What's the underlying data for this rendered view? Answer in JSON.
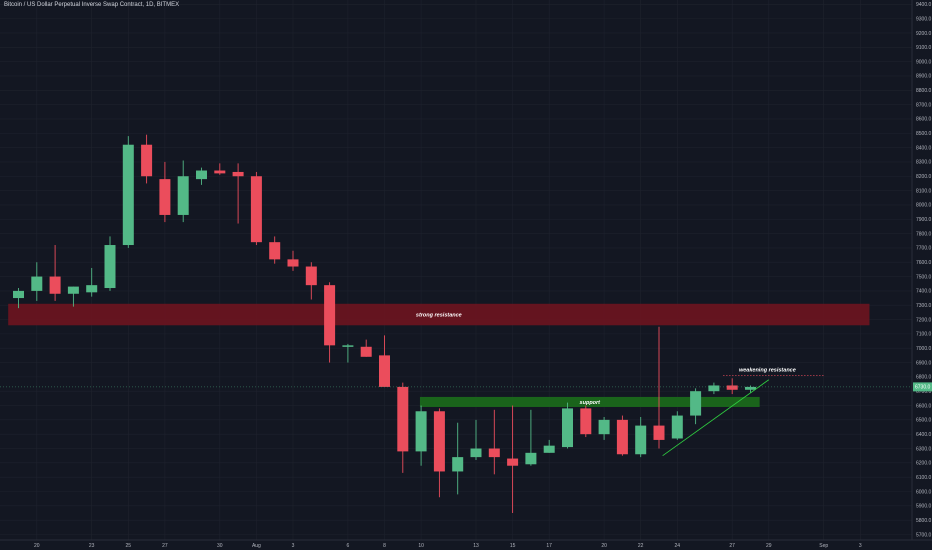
{
  "header": {
    "title": "Bitcoin / US Dollar Perpetual Inverse Swap Contract, 1D, BITMEX"
  },
  "colors": {
    "background": "#131722",
    "grid": "#1e222d",
    "up": "#53b987",
    "down": "#eb4d5c",
    "resistance_zone": "#6b1520",
    "support_zone": "#1b6b1b",
    "trendline": "#2ecc40",
    "price_tag": "#53b987"
  },
  "chart_data": {
    "type": "candlestick",
    "title": "Bitcoin / US Dollar Perpetual Inverse Swap Contract, 1D, BITMEX",
    "ylim": [
      5700,
      9400
    ],
    "grid": true,
    "y_ticks": [
      "5700.0",
      "5800.0",
      "5900.0",
      "6000.0",
      "6100.0",
      "6200.0",
      "6300.0",
      "6400.0",
      "6500.0",
      "6600.0",
      "6700.0",
      "6800.0",
      "6900.0",
      "7000.0",
      "7100.0",
      "7200.0",
      "7300.0",
      "7400.0",
      "7500.0",
      "7600.0",
      "7700.0",
      "7800.0",
      "7900.0",
      "8000.0",
      "8100.0",
      "8200.0",
      "8300.0",
      "8400.0",
      "8500.0",
      "8600.0",
      "8700.0",
      "8800.0",
      "8900.0",
      "9000.0",
      "9100.0",
      "9200.0",
      "9300.0",
      "9400.0"
    ],
    "x_labels": [
      {
        "i": 1,
        "text": "20"
      },
      {
        "i": 4,
        "text": "23"
      },
      {
        "i": 6,
        "text": "25"
      },
      {
        "i": 8,
        "text": "27"
      },
      {
        "i": 11,
        "text": "30"
      },
      {
        "i": 13,
        "text": "Aug"
      },
      {
        "i": 15,
        "text": "3"
      },
      {
        "i": 18,
        "text": "6"
      },
      {
        "i": 20,
        "text": "8"
      },
      {
        "i": 22,
        "text": "10"
      },
      {
        "i": 25,
        "text": "13"
      },
      {
        "i": 27,
        "text": "15"
      },
      {
        "i": 29,
        "text": "17"
      },
      {
        "i": 32,
        "text": "20"
      },
      {
        "i": 34,
        "text": "22"
      },
      {
        "i": 36,
        "text": "24"
      },
      {
        "i": 39,
        "text": "27"
      },
      {
        "i": 41,
        "text": "29"
      },
      {
        "i": 44,
        "text": "Sep"
      },
      {
        "i": 46,
        "text": "3"
      }
    ],
    "candles": [
      {
        "i": 0,
        "o": 7350,
        "h": 7420,
        "l": 7280,
        "c": 7400
      },
      {
        "i": 1,
        "o": 7400,
        "h": 7600,
        "l": 7330,
        "c": 7500
      },
      {
        "i": 2,
        "o": 7500,
        "h": 7720,
        "l": 7330,
        "c": 7380
      },
      {
        "i": 3,
        "o": 7380,
        "h": 7430,
        "l": 7290,
        "c": 7430
      },
      {
        "i": 4,
        "o": 7390,
        "h": 7560,
        "l": 7360,
        "c": 7440
      },
      {
        "i": 5,
        "o": 7420,
        "h": 7780,
        "l": 7400,
        "c": 7720
      },
      {
        "i": 6,
        "o": 7720,
        "h": 8480,
        "l": 7700,
        "c": 8420
      },
      {
        "i": 7,
        "o": 8420,
        "h": 8490,
        "l": 8150,
        "c": 8200
      },
      {
        "i": 8,
        "o": 8180,
        "h": 8300,
        "l": 7880,
        "c": 7930
      },
      {
        "i": 9,
        "o": 7930,
        "h": 8310,
        "l": 7880,
        "c": 8200
      },
      {
        "i": 10,
        "o": 8180,
        "h": 8260,
        "l": 8140,
        "c": 8240
      },
      {
        "i": 11,
        "o": 8240,
        "h": 8290,
        "l": 8210,
        "c": 8220
      },
      {
        "i": 12,
        "o": 8230,
        "h": 8290,
        "l": 7870,
        "c": 8200
      },
      {
        "i": 13,
        "o": 8200,
        "h": 8230,
        "l": 7720,
        "c": 7740
      },
      {
        "i": 14,
        "o": 7740,
        "h": 7780,
        "l": 7590,
        "c": 7620
      },
      {
        "i": 15,
        "o": 7620,
        "h": 7680,
        "l": 7540,
        "c": 7570
      },
      {
        "i": 16,
        "o": 7570,
        "h": 7600,
        "l": 7340,
        "c": 7440
      },
      {
        "i": 17,
        "o": 7440,
        "h": 7460,
        "l": 6900,
        "c": 7020
      },
      {
        "i": 18,
        "o": 7010,
        "h": 7030,
        "l": 6900,
        "c": 7020
      },
      {
        "i": 19,
        "o": 7010,
        "h": 7060,
        "l": 6940,
        "c": 6940
      },
      {
        "i": 20,
        "o": 6950,
        "h": 7090,
        "l": 6750,
        "c": 6730
      },
      {
        "i": 21,
        "o": 6730,
        "h": 6760,
        "l": 6130,
        "c": 6280
      },
      {
        "i": 22,
        "o": 6280,
        "h": 6600,
        "l": 6180,
        "c": 6560
      },
      {
        "i": 23,
        "o": 6560,
        "h": 6580,
        "l": 5960,
        "c": 6140
      },
      {
        "i": 24,
        "o": 6140,
        "h": 6480,
        "l": 5980,
        "c": 6240
      },
      {
        "i": 25,
        "o": 6240,
        "h": 6500,
        "l": 6220,
        "c": 6300
      },
      {
        "i": 26,
        "o": 6300,
        "h": 6570,
        "l": 6120,
        "c": 6240
      },
      {
        "i": 27,
        "o": 6230,
        "h": 6600,
        "l": 5850,
        "c": 6180
      },
      {
        "i": 28,
        "o": 6190,
        "h": 6570,
        "l": 6180,
        "c": 6270
      },
      {
        "i": 29,
        "o": 6270,
        "h": 6360,
        "l": 6270,
        "c": 6320
      },
      {
        "i": 30,
        "o": 6310,
        "h": 6620,
        "l": 6300,
        "c": 6580
      },
      {
        "i": 31,
        "o": 6580,
        "h": 6600,
        "l": 6380,
        "c": 6400
      },
      {
        "i": 32,
        "o": 6400,
        "h": 6520,
        "l": 6360,
        "c": 6500
      },
      {
        "i": 33,
        "o": 6500,
        "h": 6530,
        "l": 6250,
        "c": 6260
      },
      {
        "i": 34,
        "o": 6260,
        "h": 6520,
        "l": 6240,
        "c": 6460
      },
      {
        "i": 35,
        "o": 6460,
        "h": 7150,
        "l": 6300,
        "c": 6360
      },
      {
        "i": 36,
        "o": 6370,
        "h": 6560,
        "l": 6360,
        "c": 6530
      },
      {
        "i": 37,
        "o": 6530,
        "h": 6720,
        "l": 6470,
        "c": 6700
      },
      {
        "i": 38,
        "o": 6700,
        "h": 6760,
        "l": 6680,
        "c": 6740
      },
      {
        "i": 39,
        "o": 6740,
        "h": 6790,
        "l": 6680,
        "c": 6710
      },
      {
        "i": 40,
        "o": 6710,
        "h": 6740,
        "l": 6690,
        "c": 6730
      }
    ],
    "zones": [
      {
        "name": "strong-resistance",
        "label": "strong resistance",
        "i_start": -1,
        "i_end": 46.5,
        "y_low": 7160,
        "y_high": 7310,
        "color": "#6b1520"
      },
      {
        "name": "support",
        "label": "support",
        "i_start": 21.5,
        "i_end": 40.5,
        "y_low": 6590,
        "y_high": 6660,
        "color": "#1b6b1b"
      }
    ],
    "weakening_resistance": {
      "label": "weakening resistance",
      "i_start": 38.5,
      "i_end": 44,
      "y": 6810,
      "color": "#eb4d5c"
    },
    "trendline": {
      "i1": 35.2,
      "y1": 6250,
      "i2": 41,
      "y2": 6780
    },
    "last_price": {
      "value": 6730,
      "label": "6730.0"
    }
  }
}
